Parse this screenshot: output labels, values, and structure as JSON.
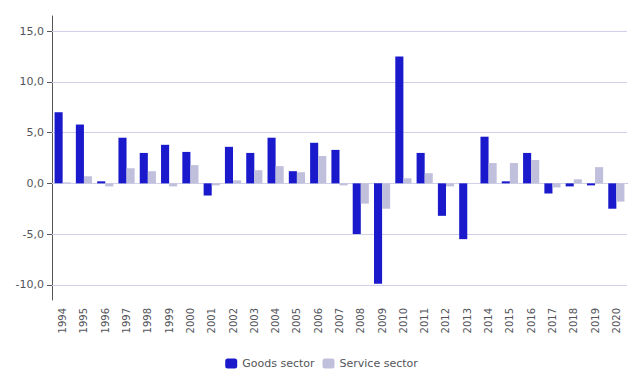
{
  "chart_data": {
    "type": "bar",
    "categories": [
      "1994",
      "1995",
      "1996",
      "1997",
      "1998",
      "1999",
      "2000",
      "2001",
      "2002",
      "2003",
      "2004",
      "2005",
      "2006",
      "2007",
      "2008",
      "2009",
      "2010",
      "2011",
      "2012",
      "2013",
      "2014",
      "2015",
      "2016",
      "2017",
      "2018",
      "2019",
      "2020"
    ],
    "series": [
      {
        "name": "Goods sector",
        "color": "#1a1acc",
        "values": [
          7.0,
          5.8,
          0.2,
          4.5,
          3.0,
          3.8,
          3.1,
          -1.2,
          3.6,
          3.0,
          4.5,
          1.2,
          4.0,
          3.3,
          -5.0,
          -9.9,
          12.5,
          3.0,
          -3.2,
          -5.5,
          4.6,
          0.2,
          3.0,
          -1.0,
          -0.3,
          -0.2,
          -2.5
        ]
      },
      {
        "name": "Service sector",
        "color": "#c0c0dc",
        "values": [
          0.1,
          0.7,
          -0.3,
          1.5,
          1.2,
          -0.3,
          1.8,
          -0.2,
          0.3,
          1.3,
          1.7,
          1.1,
          2.7,
          -0.2,
          -2.0,
          -2.5,
          0.5,
          1.0,
          -0.3,
          0.0,
          2.0,
          2.0,
          2.3,
          -0.4,
          0.4,
          1.6,
          -1.8
        ]
      }
    ],
    "ylim": [
      -11.5,
      16.5
    ],
    "yticks": [
      {
        "value": -10.0,
        "label": "-10,0"
      },
      {
        "value": -5.0,
        "label": "-5,0"
      },
      {
        "value": 0.0,
        "label": "0,0"
      },
      {
        "value": 5.0,
        "label": "5,0"
      },
      {
        "value": 10.0,
        "label": "10,0"
      },
      {
        "value": 15.0,
        "label": "15,0"
      }
    ],
    "grid": true,
    "legend": "bottom"
  }
}
